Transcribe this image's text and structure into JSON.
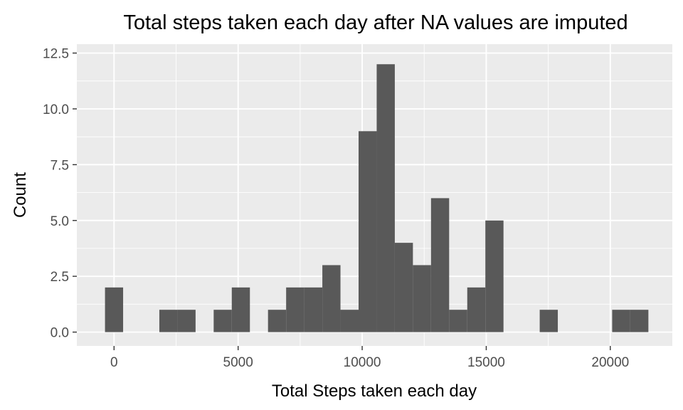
{
  "chart_data": {
    "type": "bar",
    "title": "Total steps taken each day after NA values are imputed",
    "xlabel": "Total Steps taken each day",
    "ylabel": "Count",
    "xlim": [
      -1500,
      22500
    ],
    "ylim": [
      -0.62,
      12.9
    ],
    "xticks": [
      0,
      5000,
      10000,
      15000,
      20000
    ],
    "xtick_labels": [
      "0",
      "5000",
      "10000",
      "15000",
      "20000"
    ],
    "yticks": [
      0.0,
      2.5,
      5.0,
      7.5,
      10.0,
      12.5
    ],
    "ytick_labels": [
      "0.0",
      "2.5",
      "5.0",
      "7.5",
      "10.0",
      "12.5"
    ],
    "bin_width": 730,
    "bins": [
      {
        "center": 0,
        "count": 2
      },
      {
        "center": 2190,
        "count": 1
      },
      {
        "center": 2920,
        "count": 1
      },
      {
        "center": 4380,
        "count": 1
      },
      {
        "center": 5110,
        "count": 2
      },
      {
        "center": 6570,
        "count": 1
      },
      {
        "center": 7300,
        "count": 2
      },
      {
        "center": 8030,
        "count": 2
      },
      {
        "center": 8760,
        "count": 3
      },
      {
        "center": 9490,
        "count": 1
      },
      {
        "center": 10220,
        "count": 9
      },
      {
        "center": 10950,
        "count": 12
      },
      {
        "center": 11680,
        "count": 4
      },
      {
        "center": 12410,
        "count": 3
      },
      {
        "center": 13140,
        "count": 6
      },
      {
        "center": 13870,
        "count": 1
      },
      {
        "center": 14600,
        "count": 2
      },
      {
        "center": 15330,
        "count": 5
      },
      {
        "center": 17520,
        "count": 1
      },
      {
        "center": 20440,
        "count": 1
      },
      {
        "center": 21170,
        "count": 1
      }
    ],
    "grid": true,
    "legend": "none"
  }
}
